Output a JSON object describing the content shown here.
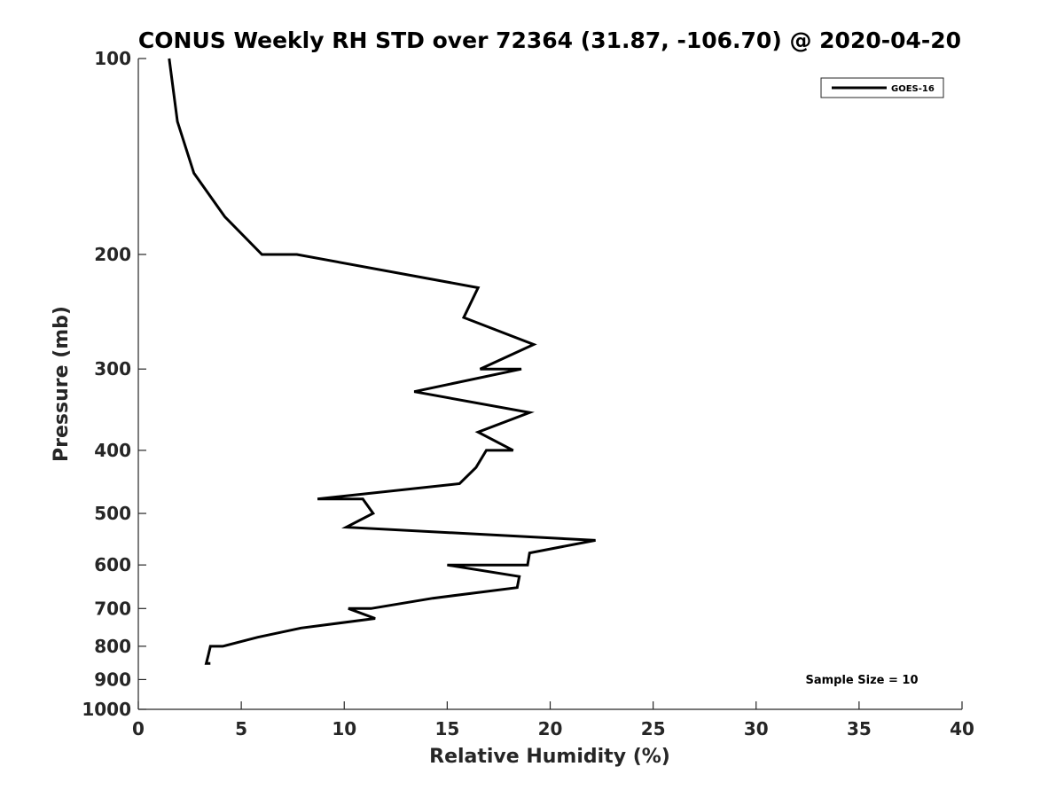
{
  "chart_data": {
    "type": "line",
    "title": "CONUS Weekly RH STD over 72364 (31.87, -106.70) @ 2020-04-20",
    "xlabel": "Relative Humidity (%)",
    "ylabel": "Pressure (mb)",
    "xlim": [
      0,
      40
    ],
    "ylim": [
      100,
      1000
    ],
    "y_scale": "log",
    "y_reversed": true,
    "x_ticks": [
      0,
      5,
      10,
      15,
      20,
      25,
      30,
      35,
      40
    ],
    "y_ticks": [
      100,
      200,
      300,
      400,
      500,
      600,
      700,
      800,
      900,
      1000
    ],
    "grid": false,
    "legend_position": "top-right",
    "annotation": "Sample Size = 10",
    "series": [
      {
        "name": "GOES-16",
        "color": "#000000",
        "points": [
          [
            1.5,
            100
          ],
          [
            1.9,
            125
          ],
          [
            2.7,
            150
          ],
          [
            4.2,
            175
          ],
          [
            6.0,
            200
          ],
          [
            7.7,
            200
          ],
          [
            16.5,
            225
          ],
          [
            15.8,
            250
          ],
          [
            19.2,
            275
          ],
          [
            16.6,
            300
          ],
          [
            18.6,
            300
          ],
          [
            13.4,
            325
          ],
          [
            19.0,
            350
          ],
          [
            16.5,
            375
          ],
          [
            18.2,
            400
          ],
          [
            16.9,
            400
          ],
          [
            16.4,
            425
          ],
          [
            15.6,
            450
          ],
          [
            8.7,
            475
          ],
          [
            10.9,
            475
          ],
          [
            11.4,
            500
          ],
          [
            10.1,
            525
          ],
          [
            22.2,
            550
          ],
          [
            19.0,
            575
          ],
          [
            18.9,
            600
          ],
          [
            15.0,
            600
          ],
          [
            18.5,
            625
          ],
          [
            18.4,
            650
          ],
          [
            14.3,
            675
          ],
          [
            11.3,
            700
          ],
          [
            10.2,
            700
          ],
          [
            11.5,
            725
          ],
          [
            7.9,
            750
          ],
          [
            5.8,
            775
          ],
          [
            4.1,
            800
          ],
          [
            3.5,
            800
          ],
          [
            3.4,
            825
          ],
          [
            3.3,
            850
          ],
          [
            3.5,
            850
          ]
        ]
      }
    ]
  }
}
